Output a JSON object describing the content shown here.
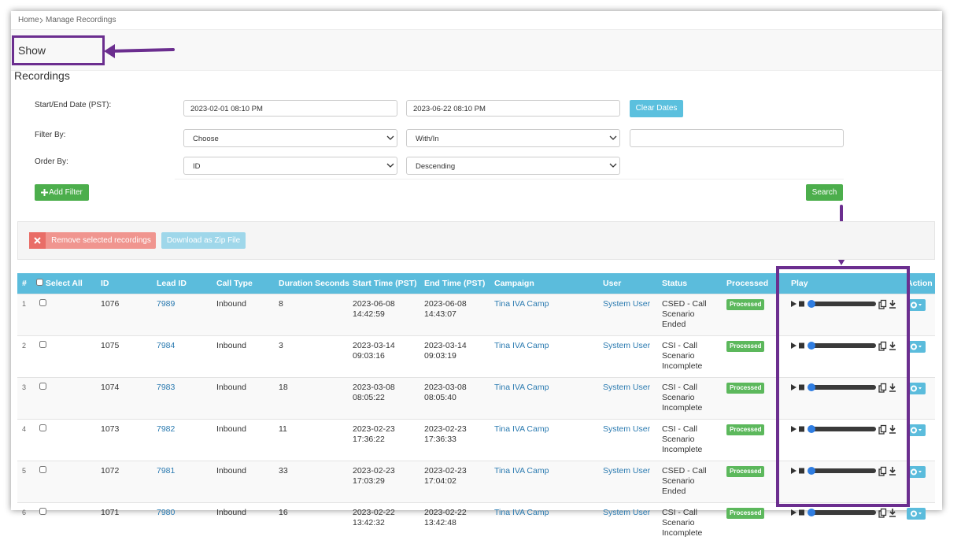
{
  "breadcrumb": [
    "Home",
    "Manage Recordings"
  ],
  "page_title": "Show Recordings",
  "filters": {
    "date_label": "Start/End Date (PST):",
    "start_date": "2023-02-01 08:10 PM",
    "end_date": "2023-06-22 08:10 PM",
    "clear_button": "Clear Dates",
    "filter_label": "Filter By:",
    "filter_field": "Choose",
    "filter_operator": "With/In",
    "order_label": "Order By:",
    "order_field": "ID",
    "order_direction": "Descending",
    "add_filter": "Add Filter",
    "search": "Search"
  },
  "bulk_actions": {
    "remove": "Remove selected recordings",
    "download": "Download as Zip File"
  },
  "table": {
    "columns": [
      "#",
      "Select All",
      "ID",
      "Lead ID",
      "Call Type",
      "Duration Seconds",
      "Start Time (PST)",
      "End Time (PST)",
      "Campaign",
      "User",
      "Status",
      "Processed",
      "Play",
      "Action"
    ],
    "rows": [
      {
        "num": "1",
        "id": "1076",
        "lead_id": "7989",
        "call_type": "Inbound",
        "duration": "8",
        "start": "2023-06-08 14:42:59",
        "end": "2023-06-08 14:43:07",
        "campaign": "Tina IVA Camp",
        "user": "System User",
        "status": "CSED - Call Scenario Ended",
        "processed": "Processed"
      },
      {
        "num": "2",
        "id": "1075",
        "lead_id": "7984",
        "call_type": "Inbound",
        "duration": "3",
        "start": "2023-03-14 09:03:16",
        "end": "2023-03-14 09:03:19",
        "campaign": "Tina IVA Camp",
        "user": "System User",
        "status": "CSI - Call Scenario Incomplete",
        "processed": "Processed"
      },
      {
        "num": "3",
        "id": "1074",
        "lead_id": "7983",
        "call_type": "Inbound",
        "duration": "18",
        "start": "2023-03-08 08:05:22",
        "end": "2023-03-08 08:05:40",
        "campaign": "Tina IVA Camp",
        "user": "System User",
        "status": "CSI - Call Scenario Incomplete",
        "processed": "Processed"
      },
      {
        "num": "4",
        "id": "1073",
        "lead_id": "7982",
        "call_type": "Inbound",
        "duration": "11",
        "start": "2023-02-23 17:36:22",
        "end": "2023-02-23 17:36:33",
        "campaign": "Tina IVA Camp",
        "user": "System User",
        "status": "CSI - Call Scenario Incomplete",
        "processed": "Processed"
      },
      {
        "num": "5",
        "id": "1072",
        "lead_id": "7981",
        "call_type": "Inbound",
        "duration": "33",
        "start": "2023-02-23 17:03:29",
        "end": "2023-02-23 17:04:02",
        "campaign": "Tina IVA Camp",
        "user": "System User",
        "status": "CSED - Call Scenario Ended",
        "processed": "Processed"
      },
      {
        "num": "6",
        "id": "1071",
        "lead_id": "7980",
        "call_type": "Inbound",
        "duration": "16",
        "start": "2023-02-22 13:42:32",
        "end": "2023-02-22 13:42:48",
        "campaign": "Tina IVA Camp",
        "user": "System User",
        "status": "CSI - Call Scenario Incomplete",
        "processed": "Processed"
      }
    ]
  }
}
